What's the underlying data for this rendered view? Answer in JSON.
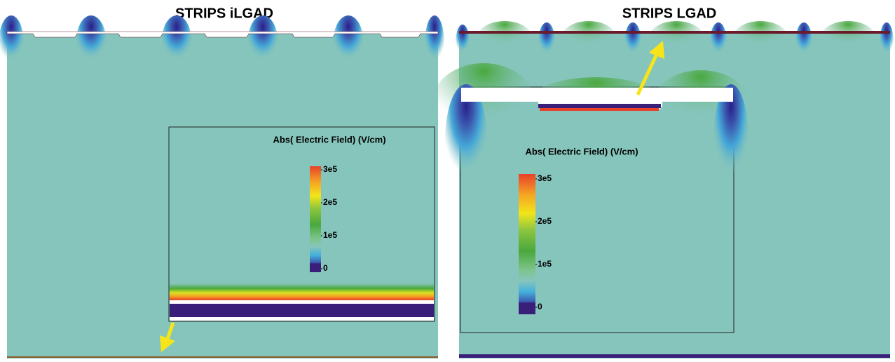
{
  "panels": [
    {
      "title": "STRIPS iLGAD",
      "legend": {
        "title": "Abs( Electric Field) (V/cm)",
        "range": [
          0,
          300000
        ],
        "ticks": [
          {
            "value": 300000,
            "label": "3e5"
          },
          {
            "value": 200000,
            "label": "2e5"
          },
          {
            "value": 100000,
            "label": "1e5"
          },
          0
        ]
      }
    },
    {
      "title": "STRIPS LGAD",
      "legend": {
        "title": "Abs( Electric Field) (V/cm)",
        "range": [
          0,
          300000
        ],
        "ticks": [
          {
            "value": 300000,
            "label": "3e5"
          },
          {
            "value": 200000,
            "label": "2e5"
          },
          {
            "value": 100000,
            "label": "1e5"
          },
          0
        ]
      }
    }
  ]
}
